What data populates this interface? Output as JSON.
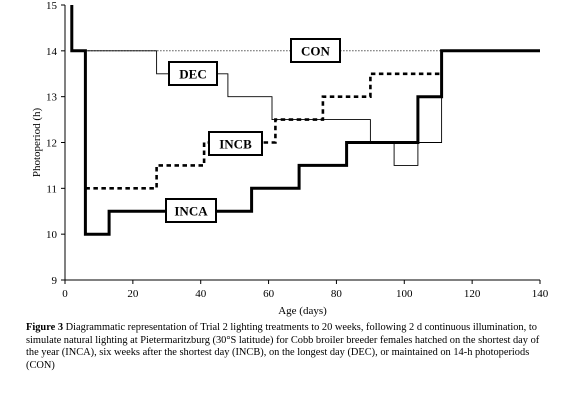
{
  "chart_data": {
    "type": "line",
    "xlabel": "Age (days)",
    "ylabel": "Photoperiod (h)",
    "xlim": [
      0,
      140
    ],
    "ylim": [
      9,
      15
    ],
    "xticks": [
      "0",
      "20",
      "40",
      "60",
      "80",
      "100",
      "120",
      "140"
    ],
    "yticks": [
      "9",
      "10",
      "11",
      "12",
      "13",
      "14",
      "15"
    ],
    "grid": false,
    "series": [
      {
        "name": "CON",
        "style": "dotted",
        "color": "#000000",
        "x": [
          6,
          140
        ],
        "y": [
          14,
          14
        ]
      },
      {
        "name": "DEC",
        "style": "thin-solid",
        "color": "#000000",
        "x": [
          6,
          27,
          27,
          34,
          34,
          48,
          48,
          61,
          61,
          76,
          76,
          90,
          90,
          97,
          97,
          104,
          104,
          111,
          111,
          140
        ],
        "y": [
          14,
          14,
          13.5,
          13.5,
          13.5,
          13.5,
          13,
          13,
          12.5,
          12.5,
          12.5,
          12.5,
          12,
          12,
          11.5,
          11.5,
          12,
          12,
          14,
          14
        ]
      },
      {
        "name": "INCB",
        "style": "dashed",
        "color": "#000000",
        "x": [
          6,
          27,
          27,
          41,
          41,
          55,
          55,
          62,
          62,
          76,
          76,
          83,
          83,
          90,
          90,
          104,
          104,
          111
        ],
        "y": [
          11,
          11,
          11.5,
          11.5,
          12,
          12,
          12,
          12,
          12.5,
          12.5,
          13,
          13,
          13,
          13,
          13.5,
          13.5,
          13.5,
          13.5
        ]
      },
      {
        "name": "INCA",
        "style": "thick-solid",
        "color": "#000000",
        "x": [
          2,
          2,
          6,
          6,
          13,
          13,
          27,
          27,
          55,
          55,
          69,
          69,
          83,
          83,
          104,
          104,
          111,
          111,
          140
        ],
        "y": [
          15,
          14,
          14,
          10,
          10,
          10.5,
          10.5,
          10.5,
          10.5,
          11,
          11,
          11.5,
          11.5,
          12,
          12,
          13,
          13,
          14,
          14
        ]
      }
    ],
    "annotations": [
      "CON",
      "DEC",
      "INCB",
      "INCA"
    ]
  },
  "caption": {
    "label": "Figure 3",
    "text": " Diagrammatic representation of Trial 2 lighting treatments to 20 weeks, following 2 d continuous illumination, to simulate natural lighting at Pietermaritzburg (30°S latitude) for Cobb broiler breeder females hatched on the shortest day of the year (INCA), six weeks after the shortest day (INCB), on the longest day (DEC), or maintained on 14-h photoperiods (CON)"
  }
}
